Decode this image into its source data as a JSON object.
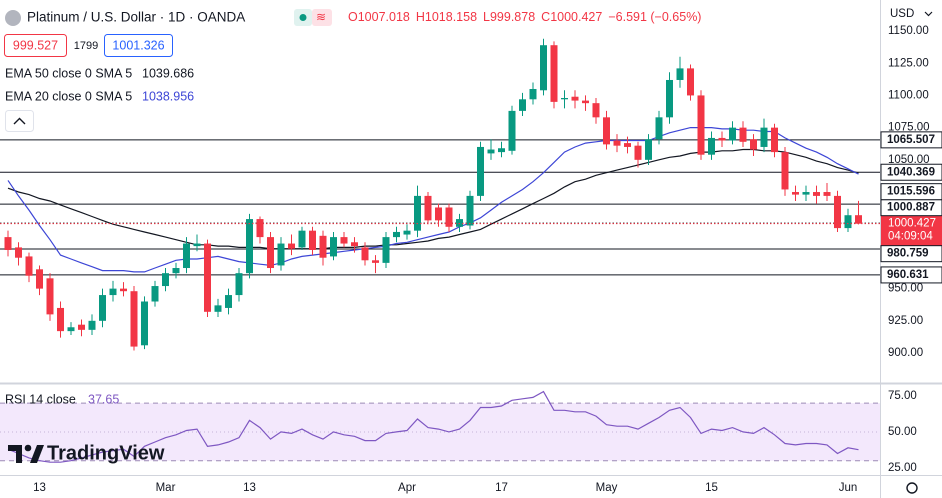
{
  "header": {
    "symbol": "Platinum / U.S. Dollar · 1D · OANDA",
    "ohlc": [
      "O1007.018",
      "H1018.158",
      "L999.878",
      "C1000.427",
      "−6.591 (−0.65%)"
    ],
    "bid": "999.527",
    "spread": "1799",
    "ask": "1001.326",
    "currency": "USD",
    "countdown": "04:09:04",
    "logo": "TradingView"
  },
  "chart_data": [
    {
      "type": "candlestick",
      "categories": [
        null,
        null,
        null,
        "13",
        null,
        null,
        null,
        null,
        null,
        null,
        null,
        null,
        null,
        null,
        null,
        "Mar",
        null,
        null,
        null,
        null,
        null,
        null,
        null,
        "13",
        null,
        null,
        null,
        null,
        null,
        null,
        null,
        null,
        null,
        null,
        null,
        null,
        null,
        null,
        "Apr",
        null,
        null,
        null,
        null,
        null,
        null,
        null,
        null,
        "17",
        null,
        null,
        null,
        null,
        null,
        null,
        null,
        null,
        null,
        "May",
        null,
        null,
        null,
        null,
        null,
        null,
        null,
        null,
        null,
        "15",
        null,
        null,
        null,
        null,
        null,
        null,
        null,
        null,
        null,
        null,
        null,
        null,
        "Jun",
        null
      ],
      "open": [
        990,
        982,
        975,
        965,
        958,
        935,
        917,
        922,
        918,
        925,
        945,
        950,
        948,
        906,
        940,
        952,
        962,
        966,
        983,
        985,
        932,
        935,
        945,
        962,
        1004,
        990,
        968,
        985,
        982,
        995,
        991,
        975,
        990,
        986,
        982,
        972,
        970,
        990,
        992,
        995,
        1022,
        1013,
        1013,
        998,
        999,
        1022,
        1055,
        1056,
        1057,
        1088,
        1097,
        1104,
        1139,
        1097,
        1099,
        1096,
        1094,
        1083,
        1065,
        1063,
        1061,
        1050,
        1066,
        1083,
        1112,
        1121,
        1100,
        1054,
        1067,
        1065,
        1075,
        1066,
        1060,
        1075,
        1056,
        1025,
        1023,
        1025,
        1025,
        1022,
        997,
        1007.018
      ],
      "high": [
        995,
        986,
        978,
        968,
        962,
        940,
        924,
        926,
        930,
        950,
        956,
        955,
        952,
        944,
        956,
        966,
        970,
        990,
        992,
        988,
        942,
        950,
        966,
        1008,
        1006,
        994,
        990,
        992,
        998,
        998,
        995,
        994,
        994,
        990,
        986,
        976,
        994,
        998,
        1000,
        1030,
        1025,
        1016,
        1016,
        1008,
        1026,
        1064,
        1066,
        1064,
        1092,
        1102,
        1110,
        1144,
        1142,
        1104,
        1104,
        1100,
        1098,
        1088,
        1070,
        1068,
        1064,
        1070,
        1088,
        1118,
        1130,
        1124,
        1104,
        1072,
        1072,
        1080,
        1080,
        1070,
        1082,
        1078,
        1060,
        1030,
        1030,
        1030,
        1032,
        1026,
        1012,
        1018.158
      ],
      "low": [
        975,
        968,
        955,
        945,
        925,
        912,
        914,
        913,
        914,
        920,
        940,
        944,
        902,
        903,
        936,
        948,
        958,
        962,
        979,
        928,
        928,
        930,
        940,
        958,
        985,
        962,
        964,
        976,
        980,
        976,
        968,
        972,
        982,
        978,
        968,
        962,
        966,
        986,
        988,
        990,
        1000,
        998,
        994,
        994,
        996,
        1018,
        1050,
        1052,
        1054,
        1084,
        1093,
        1100,
        1090,
        1090,
        1090,
        1088,
        1078,
        1058,
        1056,
        1055,
        1044,
        1046,
        1062,
        1078,
        1106,
        1096,
        1050,
        1050,
        1060,
        1062,
        1060,
        1053,
        1056,
        1052,
        1022,
        1018,
        1018,
        1016,
        1018,
        994,
        994,
        999.878
      ],
      "close": [
        980,
        974,
        960,
        950,
        930,
        917,
        920,
        918,
        925,
        945,
        950,
        948,
        905,
        940,
        952,
        962,
        966,
        985,
        985,
        932,
        937,
        945,
        962,
        1004,
        990,
        966,
        985,
        981,
        995,
        980,
        974,
        990,
        985,
        983,
        972,
        970,
        990,
        994,
        995,
        1022,
        1003,
        1003,
        998,
        1004,
        1022,
        1060,
        1058,
        1059,
        1088,
        1097,
        1105,
        1139,
        1095,
        1098,
        1096,
        1094,
        1083,
        1062,
        1061,
        1060,
        1050,
        1066,
        1083,
        1112,
        1121,
        1100,
        1054,
        1067,
        1065,
        1075,
        1064,
        1058,
        1075,
        1056,
        1027,
        1023,
        1025,
        1022,
        1022,
        997,
        1007,
        1000.427
      ],
      "up_color": "#089981",
      "down_color": "#f23645",
      "series": [
        {
          "name": "EMA 50 close 0 SMA 5",
          "color": "#131722",
          "values": [
            1028,
            1025,
            1023,
            1020,
            1018,
            1015,
            1012,
            1009,
            1006,
            1003,
            1000,
            998,
            996,
            994,
            992,
            990,
            988,
            986,
            984,
            984,
            983,
            983,
            982,
            982,
            982,
            981,
            981,
            981,
            981,
            981,
            981,
            982,
            982,
            982,
            983,
            983,
            984,
            984,
            985,
            986,
            987,
            989,
            990,
            992,
            994,
            996,
            1000,
            1004,
            1008,
            1012,
            1016,
            1020,
            1024,
            1029,
            1033,
            1035,
            1038,
            1040,
            1042,
            1044,
            1046,
            1048,
            1050,
            1052,
            1053,
            1055,
            1056,
            1056,
            1057,
            1057,
            1058,
            1058,
            1057,
            1057,
            1056,
            1054,
            1052,
            1049,
            1047,
            1044,
            1042,
            1039.686
          ]
        },
        {
          "name": "EMA 20 close 0 SMA 5",
          "color": "#3d46d6",
          "values": [
            1034,
            1022,
            1011,
            999,
            988,
            976,
            973,
            970,
            967,
            964,
            964,
            964,
            963,
            963,
            966,
            969,
            972,
            973,
            973,
            974,
            975,
            973,
            971,
            970,
            969,
            968,
            970,
            973,
            975,
            976,
            977,
            978,
            979,
            980,
            981,
            982,
            983,
            985,
            986,
            988,
            990,
            992,
            994,
            998,
            1001,
            1005,
            1011,
            1017,
            1022,
            1027,
            1033,
            1040,
            1048,
            1056,
            1060,
            1063,
            1064,
            1065,
            1065,
            1065,
            1065,
            1065,
            1068,
            1071,
            1073,
            1075,
            1075,
            1075,
            1074,
            1074,
            1073,
            1073,
            1072,
            1072,
            1067,
            1063,
            1059,
            1056,
            1052,
            1047,
            1043,
            1038.956
          ]
        }
      ],
      "levels": [
        {
          "value": 1065.507,
          "style": "solid"
        },
        {
          "value": 1040.369,
          "style": "solid"
        },
        {
          "value": 1015.596,
          "style": "solid"
        },
        {
          "value": 1000.887,
          "style": "dotted"
        },
        {
          "value": 980.759,
          "style": "solid"
        },
        {
          "value": 960.631,
          "style": "solid"
        }
      ],
      "ylim": [
        877.5,
        1174.1
      ],
      "yticks": [
        {
          "value": 1150,
          "label": "1150.00"
        },
        {
          "value": 1125,
          "label": "1125.00"
        },
        {
          "value": 1100,
          "label": "1100.00"
        },
        {
          "value": 1075,
          "label": "1075.00"
        },
        {
          "value": 1050,
          "label": "1050.00"
        },
        {
          "value": 950,
          "label": "950.00"
        },
        {
          "value": 925,
          "label": "925.00"
        },
        {
          "value": 900,
          "label": "900.00"
        }
      ]
    },
    {
      "type": "line",
      "name": "RSI 14 close",
      "color": "#7e57c2",
      "values": [
        38,
        35,
        32,
        30,
        29,
        29,
        30,
        32,
        34,
        36,
        37,
        38,
        33,
        40,
        43,
        46,
        48,
        51,
        52,
        40,
        41,
        43,
        46,
        58,
        53,
        45,
        50,
        49,
        52,
        48,
        45,
        50,
        48,
        47,
        44,
        44,
        49,
        50,
        51,
        59,
        53,
        52,
        50,
        52,
        58,
        67,
        67,
        68,
        72,
        73,
        74,
        78,
        65,
        65,
        64,
        64,
        61,
        55,
        54,
        54,
        52,
        56,
        60,
        65,
        67,
        60,
        49,
        52,
        51,
        53,
        50,
        49,
        53,
        48,
        42,
        41,
        42,
        42,
        41,
        35,
        39,
        37.65
      ],
      "bands": [
        30,
        70
      ],
      "mid": 50,
      "ylim": [
        20.1,
        82.6
      ],
      "yticks": [
        {
          "value": 75,
          "label": "75.00"
        },
        {
          "value": 50,
          "label": "50.00"
        },
        {
          "value": 25,
          "label": "25.00"
        }
      ]
    }
  ]
}
